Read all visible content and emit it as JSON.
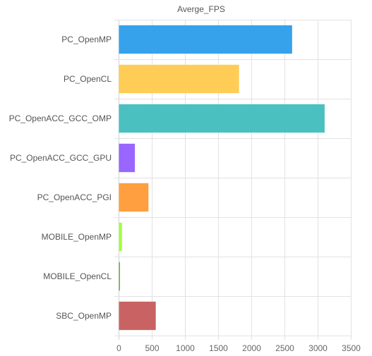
{
  "chart_data": {
    "type": "bar",
    "orientation": "horizontal",
    "title": "Averge_FPS",
    "xlabel": "",
    "ylabel": "",
    "categories": [
      "PC_OpenMP",
      "PC_OpenCL",
      "PC_OpenACC_GCC_OMP",
      "PC_OpenACC_GCC_GPU",
      "PC_OpenACC_PGI",
      "MOBILE_OpenMP",
      "MOBILE_OpenCL",
      "SBC_OpenMP"
    ],
    "values": [
      2610,
      1810,
      3100,
      240,
      445,
      45,
      15,
      555
    ],
    "colors": [
      "#36a2eb",
      "#ffcd56",
      "#4bc0c0",
      "#9966ff",
      "#ff9f40",
      "#a3ff40",
      "#66aa33",
      "#c96363"
    ],
    "xlim": [
      0,
      3500
    ],
    "xticks": [
      0,
      500,
      1000,
      1500,
      2000,
      2500,
      3000,
      3500
    ],
    "grid": true,
    "legend": "none"
  }
}
